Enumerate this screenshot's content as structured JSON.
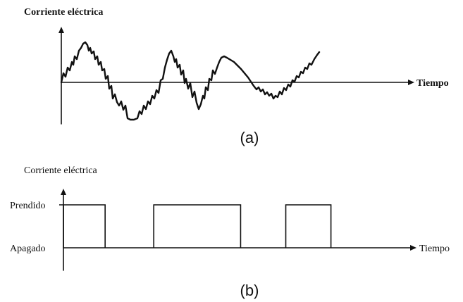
{
  "panel_a": {
    "y_axis_label": "Corriente eléctrica",
    "x_axis_label": "Tiempo",
    "caption": "(a)",
    "signal": "analog"
  },
  "panel_b": {
    "y_axis_label": "Corriente eléctrica",
    "x_axis_label": "Tiempo",
    "level_high_label": "Prendido",
    "level_low_label": "Apagado",
    "caption": "(b)",
    "signal": "digital",
    "pulses": [
      {
        "start": 0.0,
        "end": 0.12
      },
      {
        "start": 0.26,
        "end": 0.51
      },
      {
        "start": 0.64,
        "end": 0.77
      }
    ]
  }
}
